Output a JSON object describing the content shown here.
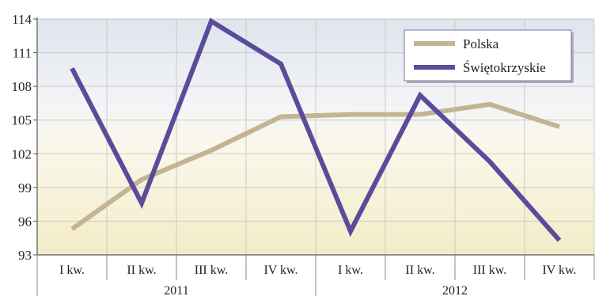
{
  "chart_data": {
    "type": "line",
    "title": "",
    "xlabel": "",
    "ylabel": "",
    "categories": [
      "I kw.",
      "II kw.",
      "III kw.",
      "IV kw.",
      "I kw.",
      "II kw.",
      "III kw.",
      "IV kw."
    ],
    "groups": [
      {
        "label": "2011",
        "span": 4
      },
      {
        "label": "2012",
        "span": 4
      }
    ],
    "ylim": [
      93,
      114
    ],
    "yticks": [
      93,
      96,
      99,
      102,
      105,
      108,
      111,
      114
    ],
    "grid": true,
    "legend_position": "top-right",
    "series": [
      {
        "name": "Polska",
        "color": "#c4b493",
        "values": [
          95.3,
          99.7,
          102.3,
          105.3,
          105.5,
          105.5,
          106.4,
          104.4
        ]
      },
      {
        "name": "Świętokrzyskie",
        "color": "#5b4b9b",
        "values": [
          109.6,
          97.6,
          113.8,
          110.0,
          95.1,
          107.2,
          101.3,
          94.3
        ]
      }
    ]
  }
}
